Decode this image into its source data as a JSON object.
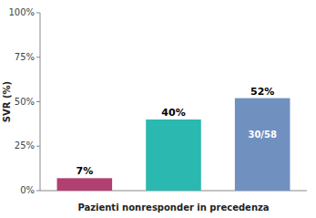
{
  "chart_data": {
    "type": "bar",
    "categories": [
      null,
      null,
      null
    ],
    "values": [
      7,
      40,
      52
    ],
    "value_labels": [
      "7%",
      "40%",
      "52%"
    ],
    "data_labels": true,
    "colors": [
      "#b04070",
      "#2ab8b0",
      "#7090c0"
    ],
    "bar_sublabels": [
      null,
      null,
      "30/58"
    ],
    "xlabel": "Pazienti nonresponder in precedenza",
    "ylabel": "SVR (%)",
    "ylim": [
      0,
      100
    ],
    "yticks": [
      {
        "value": 0,
        "label": "0%"
      },
      {
        "value": 25,
        "label": "25%"
      },
      {
        "value": 50,
        "label": "50%"
      },
      {
        "value": 75,
        "label": "75%"
      },
      {
        "value": 100,
        "label": "100%"
      }
    ],
    "grid": false
  }
}
